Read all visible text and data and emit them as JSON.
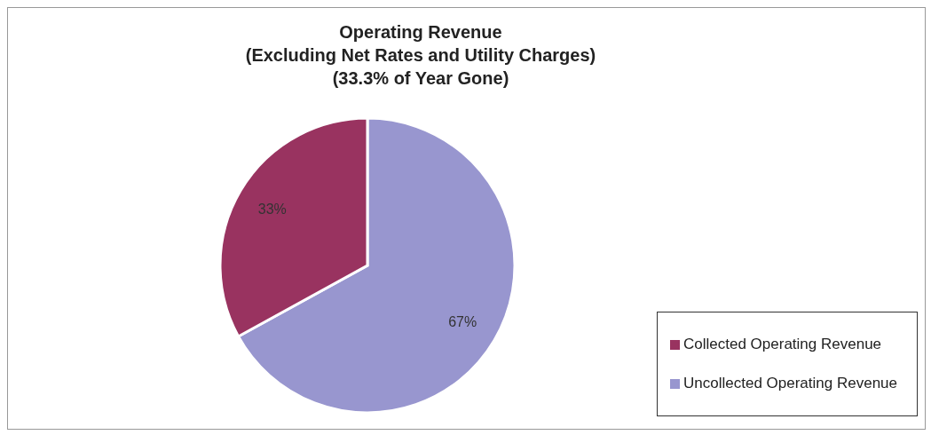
{
  "chart_data": {
    "type": "pie",
    "title": "Operating Revenue\n(Excluding Net Rates and Utility Charges)\n(33.3% of Year Gone)",
    "categories": [
      "Uncollected Operating Revenue",
      "Collected Operating Revenue"
    ],
    "values": [
      67,
      33
    ],
    "colors": [
      "#9896cf",
      "#993360"
    ],
    "value_labels": [
      "67%",
      "33%"
    ],
    "legend": "bottom right"
  }
}
